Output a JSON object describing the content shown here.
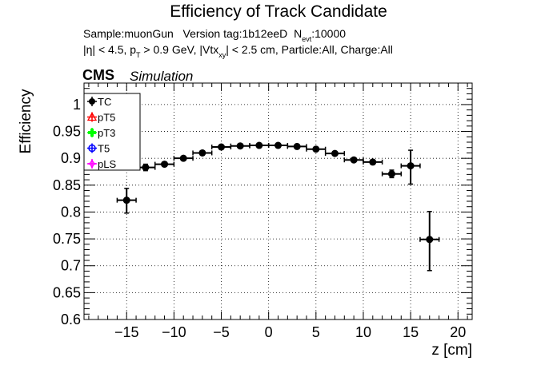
{
  "title": "Efficiency of Track Candidate",
  "info": {
    "sample_label": "Sample:muonGun",
    "version_label": "Version tag:1b12eeD",
    "nevt_label": "N",
    "nevt_sub": "evt",
    "nevt_value": ":10000",
    "cuts_a": "|η| < 4.5, p",
    "cuts_pt_sub": "T",
    "cuts_b": " > 0.9 GeV, |Vtx",
    "cuts_xy_sub": "xy",
    "cuts_c": "| < 2.5 cm, Particle:All, Charge:All"
  },
  "cms_label": "CMS",
  "simulation_label": "Simulation",
  "colors": {
    "TC": "#000000",
    "pT5": "#ff0000",
    "pT3": "#00ff00",
    "T5": "#0000ff",
    "pLS": "#ff00ff"
  },
  "chart_data": {
    "type": "scatter",
    "title": "Efficiency of Track Candidate",
    "xlabel": "z [cm]",
    "ylabel": "Efficiency",
    "xlim": [
      -19.5,
      21.5
    ],
    "ylim": [
      0.6,
      1.04
    ],
    "xticks": [
      -15,
      -10,
      -5,
      0,
      5,
      10,
      15,
      20
    ],
    "xtick_labels": [
      "−15",
      "−10",
      "−5",
      "0",
      "5",
      "10",
      "15",
      "20"
    ],
    "yticks": [
      0.6,
      0.65,
      0.7,
      0.75,
      0.8,
      0.85,
      0.9,
      0.95,
      1.0
    ],
    "ytick_labels": [
      "0.6",
      "0.65",
      "0.7",
      "0.75",
      "0.8",
      "0.85",
      "0.9",
      "0.95",
      "1"
    ],
    "grid": true,
    "legend_position": "top-left",
    "legend": [
      "TC",
      "pT5",
      "pT3",
      "T5",
      "pLS"
    ],
    "series": [
      {
        "name": "TC",
        "x": [
          -15,
          -13,
          -11,
          -9,
          -7,
          -5,
          -3,
          -1,
          1,
          3,
          5,
          7,
          9,
          11,
          13,
          15,
          17
        ],
        "y": [
          0.822,
          0.883,
          0.889,
          0.9,
          0.91,
          0.921,
          0.923,
          0.924,
          0.924,
          0.922,
          0.917,
          0.909,
          0.897,
          0.893,
          0.871,
          0.886,
          0.749
        ],
        "yerr_low": [
          0.024,
          0.006,
          0.004,
          0.003,
          0.003,
          0.002,
          0.002,
          0.002,
          0.002,
          0.002,
          0.002,
          0.003,
          0.003,
          0.004,
          0.007,
          0.034,
          0.058
        ],
        "yerr_high": [
          0.022,
          0.006,
          0.004,
          0.003,
          0.003,
          0.002,
          0.002,
          0.002,
          0.002,
          0.002,
          0.002,
          0.003,
          0.003,
          0.004,
          0.007,
          0.029,
          0.052
        ],
        "xerr": 1
      },
      {
        "name": "pT5",
        "x": [],
        "y": []
      },
      {
        "name": "pT3",
        "x": [],
        "y": []
      },
      {
        "name": "T5",
        "x": [],
        "y": []
      },
      {
        "name": "pLS",
        "x": [],
        "y": []
      }
    ]
  }
}
